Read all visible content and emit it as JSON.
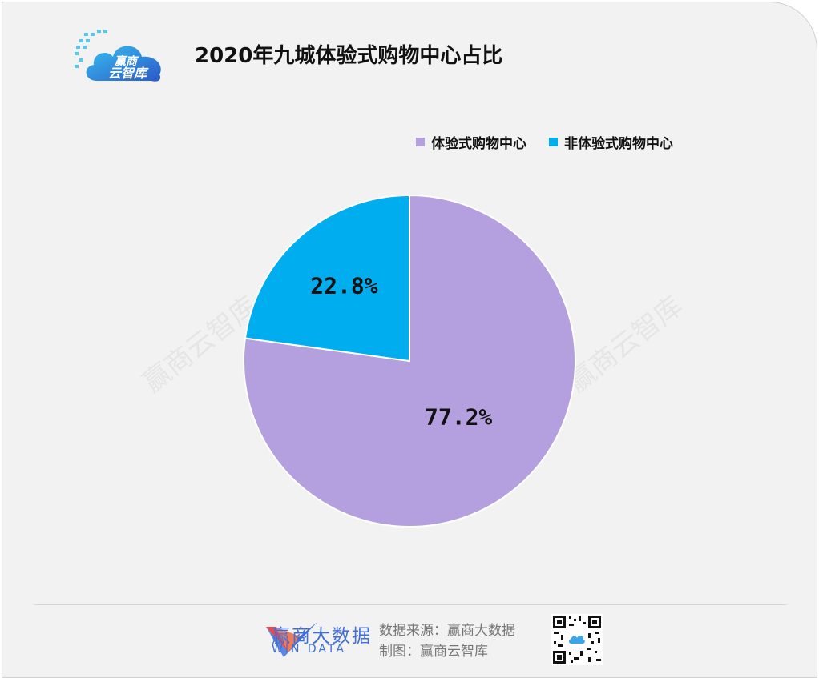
{
  "logo": {
    "line1": "赢商",
    "line2": "云智库"
  },
  "title": "2020年九城体验式购物中心占比",
  "colors": {
    "experiential": "#b4a0de",
    "non_experiential": "#00adef"
  },
  "chart_data": {
    "type": "pie",
    "title": "2020年九城体验式购物中心占比",
    "slices": [
      {
        "label": "体验式购物中心",
        "value": 77.2,
        "display": "77.2%",
        "color": "#b4a0de"
      },
      {
        "label": "非体验式购物中心",
        "value": 22.8,
        "display": "22.8%",
        "color": "#00adef"
      }
    ],
    "legend_position": "top-right"
  },
  "watermark": "赢商云智库",
  "footer": {
    "brand_cn": "赢商大数据",
    "brand_en": "WIN DATA",
    "source_line": "数据来源：赢商大数据",
    "maker_line": "制图：赢商云智库"
  }
}
